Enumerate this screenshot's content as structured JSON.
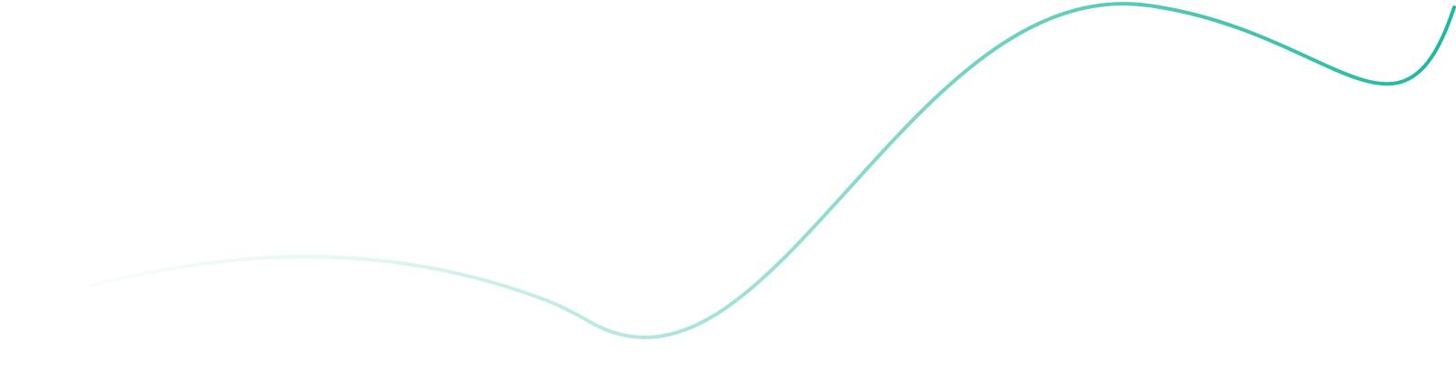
{
  "decoration": {
    "shape": "wave-line",
    "stroke_color": "#1db89f",
    "gradient_stops": [
      {
        "offset": "0%",
        "color": "#1db89f",
        "opacity": 0
      },
      {
        "offset": "25%",
        "color": "#1db89f",
        "opacity": 0.12
      },
      {
        "offset": "45%",
        "color": "#1db89f",
        "opacity": 0.35
      },
      {
        "offset": "65%",
        "color": "#1db89f",
        "opacity": 0.6
      },
      {
        "offset": "100%",
        "color": "#1db89f",
        "opacity": 1
      }
    ],
    "background_color": "#ffffff"
  }
}
